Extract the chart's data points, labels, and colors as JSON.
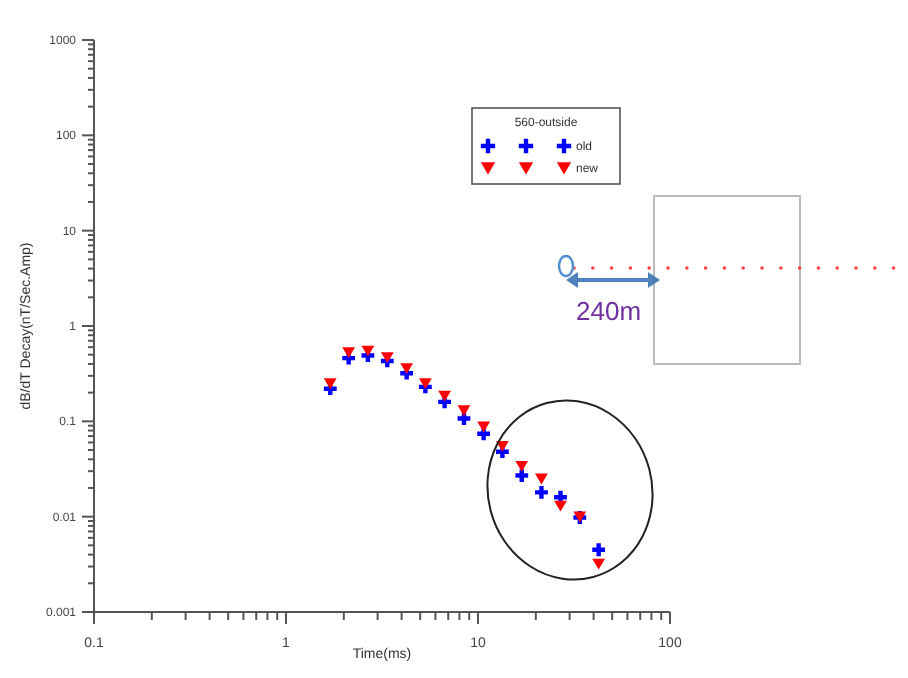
{
  "chart_data": {
    "type": "scatter",
    "xlabel": "Time(ms)",
    "ylabel": "dB/dT Decay(nT/Sec.Amp)",
    "legend_title": "560-outside",
    "log": "xy",
    "xlim": [
      0.1,
      100
    ],
    "xticks": [
      0.1,
      1,
      10,
      100
    ],
    "ylim": [
      0.001,
      1000
    ],
    "yticks": [
      0.001,
      0.01,
      0.1,
      1,
      10,
      100,
      1000
    ],
    "grid": false,
    "legend": "top right",
    "x": [
      1.7,
      2.12,
      2.67,
      3.37,
      4.25,
      5.32,
      6.7,
      8.45,
      10.7,
      13.4,
      16.9,
      21.4,
      26.9,
      33.9,
      42.5
    ],
    "series": [
      {
        "name": "old",
        "color": "#0000ff",
        "marker": "cross",
        "values": [
          0.22,
          0.46,
          0.49,
          0.43,
          0.32,
          0.23,
          0.16,
          0.107,
          0.074,
          0.048,
          0.027,
          0.018,
          0.016,
          0.0098,
          0.0045
        ]
      },
      {
        "name": "new",
        "color": "#ff0000",
        "marker": "triangle",
        "values": [
          0.25,
          0.53,
          0.55,
          0.47,
          0.36,
          0.25,
          0.185,
          0.13,
          0.088,
          0.055,
          0.034,
          0.025,
          0.013,
          0.01,
          0.0032
        ]
      }
    ],
    "annotations": [
      "240m"
    ]
  }
}
